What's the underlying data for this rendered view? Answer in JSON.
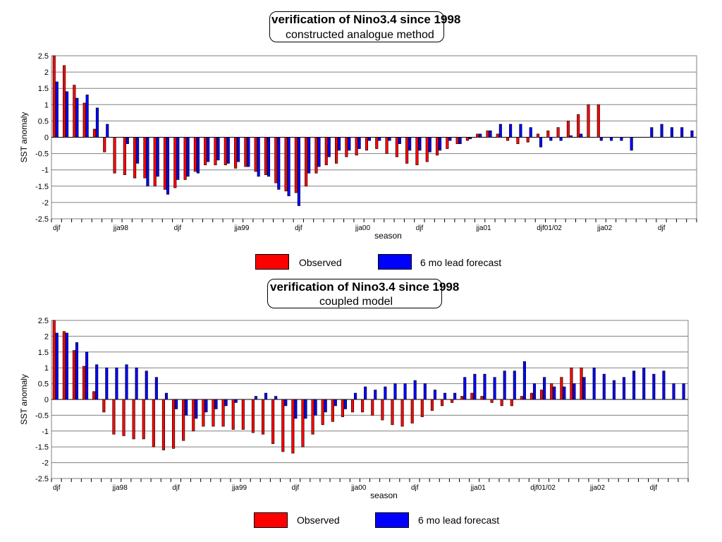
{
  "chart_data": [
    {
      "type": "bar",
      "title": "verification of Nino3.4 since 1998",
      "subtitle": "constructed analogue method",
      "xlabel": "season",
      "ylabel": "SST anomaly",
      "ylim": [
        -2.5,
        2.5
      ],
      "yticks": [
        "2.5",
        "2",
        "1.5",
        "1",
        "0.5",
        "0",
        "-0.5",
        "-1",
        "-1.5",
        "-2",
        "-2.5"
      ],
      "grid": true,
      "legend_position": "bottom",
      "tick_labels": [
        {
          "index": 0,
          "label": "djf"
        },
        {
          "index": 6,
          "label": "jja98"
        },
        {
          "index": 12,
          "label": "djf"
        },
        {
          "index": 18,
          "label": "jja99"
        },
        {
          "index": 24,
          "label": "djf"
        },
        {
          "index": 30,
          "label": "jja00"
        },
        {
          "index": 36,
          "label": "djf"
        },
        {
          "index": 42,
          "label": "jja01"
        },
        {
          "index": 48,
          "label": "djf01/02"
        },
        {
          "index": 54,
          "label": "jja02"
        },
        {
          "index": 60,
          "label": "djf"
        }
      ],
      "series": [
        {
          "name": "Observed",
          "color": "#ff0000",
          "values": [
            2.5,
            2.2,
            1.6,
            1.05,
            0.25,
            -0.45,
            -1.1,
            -1.15,
            -1.25,
            -1.25,
            -1.5,
            -1.6,
            -1.55,
            -1.3,
            -1.05,
            -0.85,
            -0.85,
            -0.85,
            -0.95,
            -0.9,
            -1.05,
            -1.15,
            -1.4,
            -1.65,
            -1.7,
            -1.5,
            -1.1,
            -0.85,
            -0.8,
            -0.6,
            -0.55,
            -0.4,
            -0.35,
            -0.5,
            -0.6,
            -0.8,
            -0.85,
            -0.75,
            -0.55,
            -0.35,
            -0.2,
            -0.1,
            0.1,
            0.2,
            0.1,
            -0.1,
            -0.2,
            -0.15,
            0.1,
            0.2,
            0.3,
            0.5,
            0.7,
            1.0,
            1.0,
            null,
            null,
            null,
            null,
            null,
            null,
            null,
            null,
            null
          ]
        },
        {
          "name": "6 mo lead forecast",
          "color": "#0000ff",
          "values": [
            1.7,
            1.4,
            1.2,
            1.3,
            0.9,
            0.4,
            null,
            -0.2,
            -0.8,
            -1.5,
            -1.2,
            -1.75,
            -1.3,
            -1.2,
            -1.1,
            -0.75,
            -0.7,
            -0.8,
            -0.75,
            -0.9,
            -1.2,
            -1.2,
            -1.6,
            -1.8,
            -2.1,
            -1.1,
            -0.9,
            -0.6,
            -0.4,
            -0.4,
            -0.35,
            -0.1,
            -0.1,
            -0.1,
            -0.2,
            -0.4,
            -0.4,
            -0.45,
            -0.4,
            -0.1,
            -0.2,
            -0.05,
            0.1,
            0.2,
            0.4,
            0.4,
            0.4,
            0.3,
            -0.3,
            -0.1,
            -0.1,
            0.05,
            0.1,
            null,
            -0.1,
            -0.1,
            -0.1,
            -0.4,
            null,
            0.3,
            0.4,
            0.3,
            0.3,
            0.2
          ]
        }
      ]
    },
    {
      "type": "bar",
      "title": "verification of Nino3.4 since 1998",
      "subtitle": "coupled model",
      "xlabel": "season",
      "ylabel": "SST anomaly",
      "ylim": [
        -2.5,
        2.5
      ],
      "yticks": [
        "2.5",
        "2",
        "1.5",
        "1",
        "0.5",
        "0",
        "-0.5",
        "-1",
        "-1.5",
        "-2",
        "-2.5"
      ],
      "grid": true,
      "legend_position": "bottom",
      "tick_labels": [
        {
          "index": 0,
          "label": "djf"
        },
        {
          "index": 6,
          "label": "jja98"
        },
        {
          "index": 12,
          "label": "djf"
        },
        {
          "index": 18,
          "label": "jja99"
        },
        {
          "index": 24,
          "label": "djf"
        },
        {
          "index": 30,
          "label": "jja00"
        },
        {
          "index": 36,
          "label": "djf"
        },
        {
          "index": 42,
          "label": "jja01"
        },
        {
          "index": 48,
          "label": "djf01/02"
        },
        {
          "index": 54,
          "label": "jja02"
        },
        {
          "index": 60,
          "label": "djf"
        }
      ],
      "series": [
        {
          "name": "Observed",
          "color": "#ff0000",
          "values": [
            2.5,
            2.15,
            1.55,
            1.05,
            0.25,
            -0.4,
            -1.1,
            -1.15,
            -1.25,
            -1.25,
            -1.5,
            -1.6,
            -1.55,
            -1.3,
            -1.0,
            -0.85,
            -0.85,
            -0.85,
            -0.95,
            -0.95,
            -1.05,
            -1.1,
            -1.4,
            -1.65,
            -1.7,
            -1.5,
            -1.1,
            -0.8,
            -0.7,
            -0.55,
            -0.4,
            -0.4,
            -0.5,
            -0.65,
            -0.8,
            -0.85,
            -0.75,
            -0.55,
            -0.35,
            -0.2,
            -0.1,
            0.1,
            0.2,
            0.1,
            -0.1,
            -0.2,
            -0.2,
            0.1,
            0.2,
            0.3,
            0.5,
            0.7,
            1.0,
            1.0,
            null,
            null,
            null,
            null,
            null,
            null,
            null,
            null,
            null,
            null
          ]
        },
        {
          "name": "6 mo lead forecast",
          "color": "#0000ff",
          "values": [
            2.1,
            2.1,
            1.8,
            1.5,
            1.1,
            1.0,
            1.0,
            1.1,
            1.0,
            0.9,
            0.7,
            0.2,
            -0.3,
            -0.5,
            -0.6,
            -0.4,
            -0.3,
            -0.2,
            -0.1,
            null,
            0.1,
            0.2,
            0.1,
            -0.2,
            -0.6,
            -0.6,
            -0.5,
            -0.4,
            -0.2,
            -0.3,
            0.2,
            0.4,
            0.3,
            0.4,
            0.5,
            0.5,
            0.6,
            0.5,
            0.3,
            0.2,
            0.2,
            0.7,
            0.8,
            0.8,
            0.7,
            0.9,
            0.9,
            1.2,
            0.5,
            0.7,
            0.4,
            0.4,
            0.5,
            0.7,
            1.0,
            0.8,
            0.6,
            0.7,
            0.9,
            1.0,
            0.8,
            0.9,
            0.5,
            0.5
          ]
        }
      ]
    }
  ]
}
